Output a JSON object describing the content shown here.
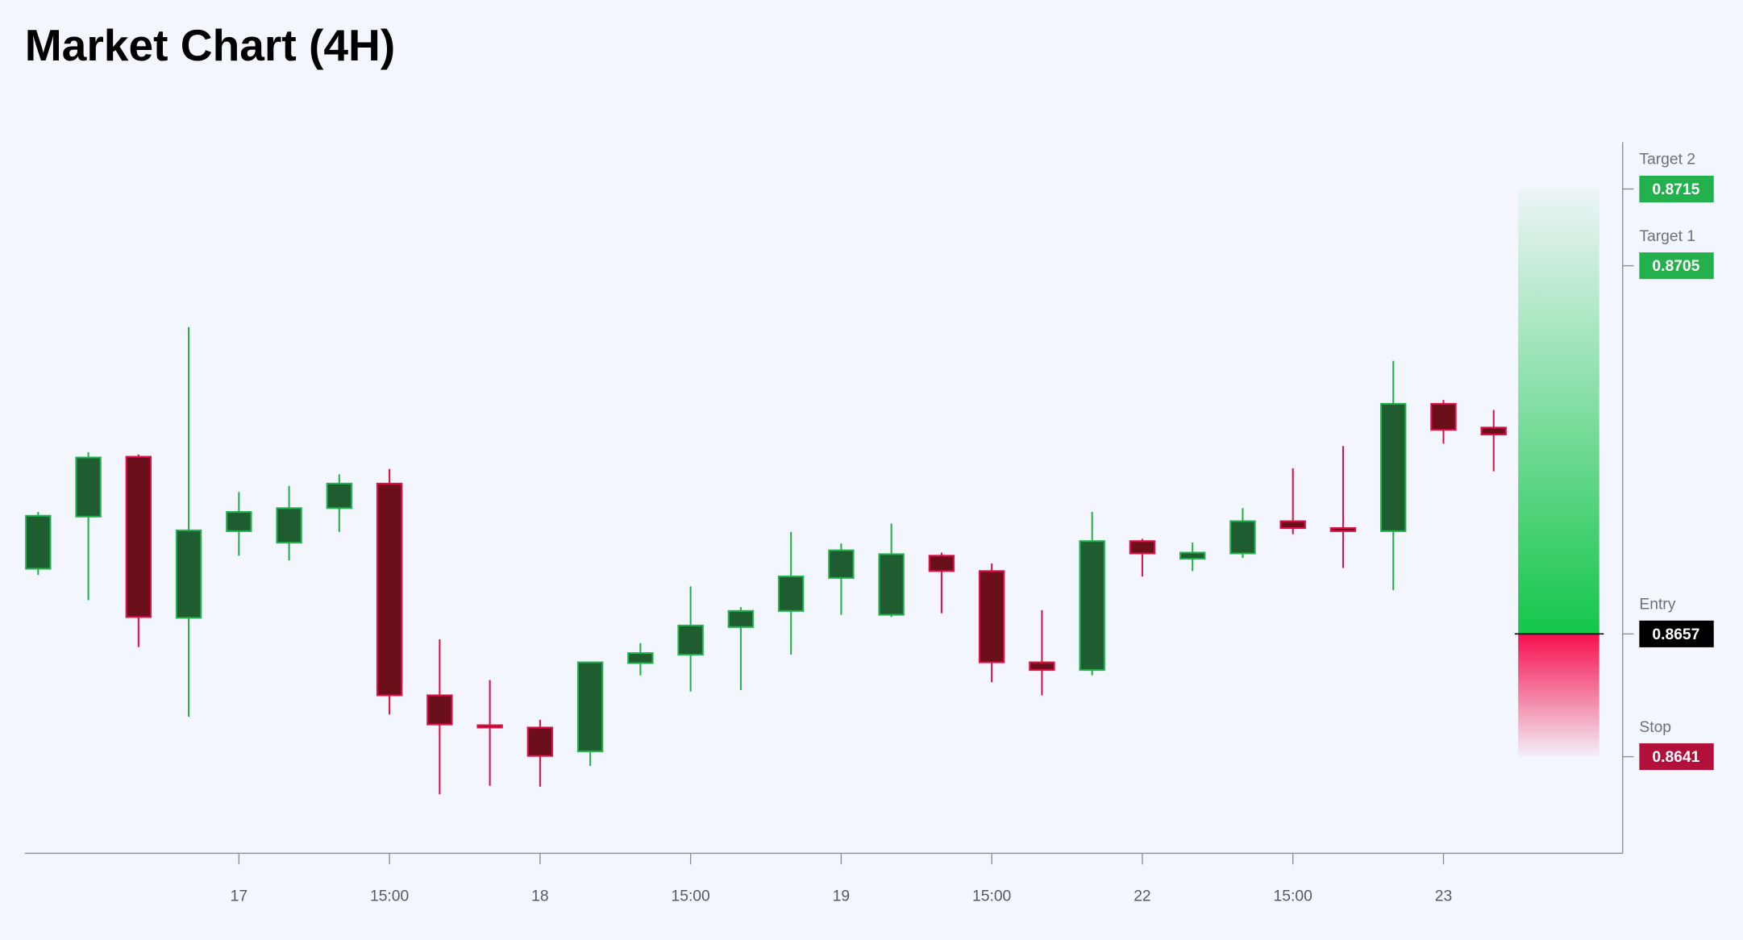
{
  "chart_data": {
    "type": "candlestick",
    "title": "Market Chart (4H)",
    "categories": [
      null,
      null,
      null,
      null,
      "17",
      null,
      null,
      "15:00",
      null,
      null,
      "18",
      null,
      null,
      "15:00",
      null,
      null,
      "19",
      null,
      null,
      "15:00",
      null,
      null,
      "22",
      null,
      null,
      "15:00",
      null,
      null,
      "23",
      null
    ],
    "open": [
      0.86655,
      0.86723,
      0.86801,
      0.86591,
      0.86704,
      0.86689,
      0.86734,
      0.86766,
      0.8649,
      0.86451,
      0.86448,
      0.86417,
      0.86532,
      0.86543,
      0.86579,
      0.866,
      0.86643,
      0.86595,
      0.86672,
      0.86652,
      0.86533,
      0.86523,
      0.86691,
      0.86668,
      0.86675,
      0.86717,
      0.86708,
      0.86704,
      0.8687,
      0.86839
    ],
    "high": [
      0.86729,
      0.86807,
      0.86804,
      0.8697,
      0.86755,
      0.86763,
      0.86778,
      0.86785,
      0.86563,
      0.8651,
      0.86458,
      0.86533,
      0.86558,
      0.86632,
      0.86605,
      0.86703,
      0.86688,
      0.86714,
      0.86676,
      0.86662,
      0.86601,
      0.86729,
      0.86694,
      0.86689,
      0.86734,
      0.86786,
      0.86815,
      0.86926,
      0.86875,
      0.86862
    ],
    "low": [
      0.86647,
      0.86614,
      0.86553,
      0.86462,
      0.86672,
      0.86666,
      0.86703,
      0.86465,
      0.86361,
      0.86372,
      0.86371,
      0.86398,
      0.86516,
      0.86495,
      0.86497,
      0.86543,
      0.86595,
      0.86592,
      0.86597,
      0.86507,
      0.8649,
      0.86516,
      0.86645,
      0.86652,
      0.86669,
      0.867,
      0.86656,
      0.86627,
      0.86818,
      0.86782
    ],
    "close": [
      0.86724,
      0.868,
      0.86592,
      0.86705,
      0.86729,
      0.86734,
      0.86766,
      0.8649,
      0.86452,
      0.86448,
      0.86411,
      0.86533,
      0.86545,
      0.86581,
      0.866,
      0.86645,
      0.86679,
      0.86674,
      0.86652,
      0.86533,
      0.86523,
      0.86691,
      0.86675,
      0.86676,
      0.86717,
      0.86708,
      0.86704,
      0.8687,
      0.86836,
      0.8683
    ],
    "ylim": [
      0.86284,
      0.87211
    ],
    "up_color": "#1f5c30",
    "up_border": "#22b14c",
    "down_color": "#6b0f1a",
    "down_border": "#e0104a",
    "levels": [
      {
        "name": "Target 2",
        "value": 0.8715,
        "color": "#22b14c"
      },
      {
        "name": "Target 1",
        "value": 0.8705,
        "color": "#22b14c"
      },
      {
        "name": "Entry",
        "value": 0.8657,
        "color": "#000000"
      },
      {
        "name": "Stop",
        "value": 0.8641,
        "color": "#b0103a"
      }
    ]
  }
}
